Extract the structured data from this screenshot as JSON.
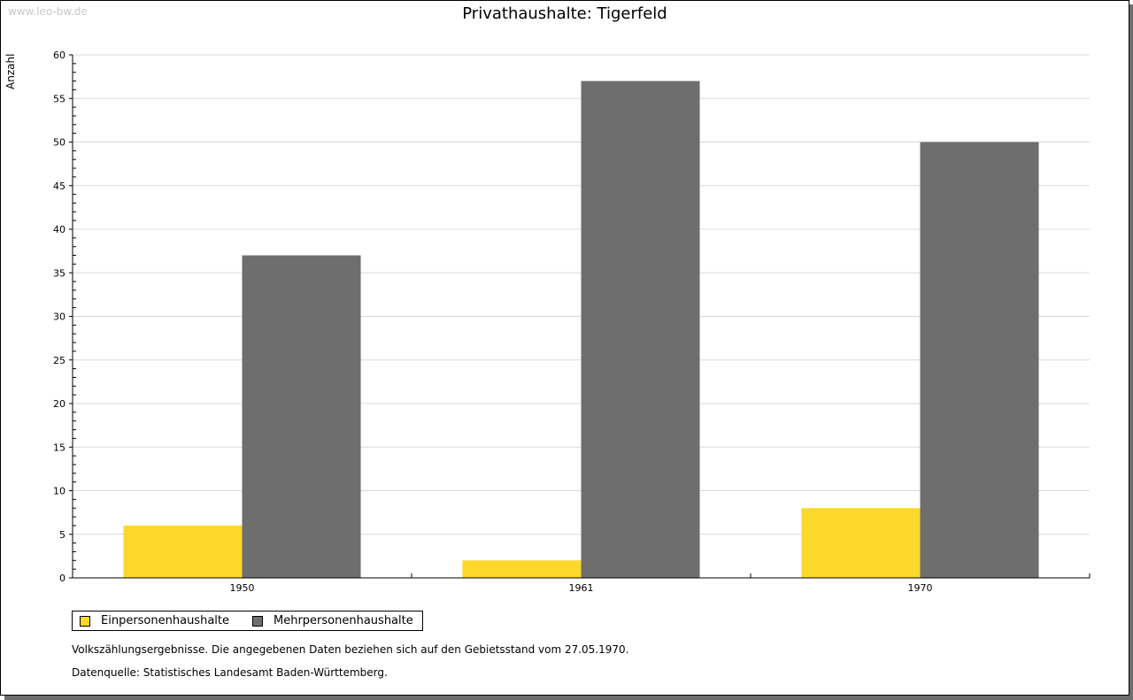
{
  "watermark": "www.leo-bw.de",
  "chart_data": {
    "type": "bar",
    "title": "Privathaushalte: Tigerfeld",
    "xlabel": "",
    "ylabel": "Anzahl",
    "ylim": [
      0,
      60
    ],
    "yticks": [
      0,
      5,
      10,
      15,
      20,
      25,
      30,
      35,
      40,
      45,
      50,
      55,
      60
    ],
    "grid": true,
    "categories": [
      "1950",
      "1961",
      "1970"
    ],
    "series": [
      {
        "name": "Einpersonenhaushalte",
        "color": "#fcd72c",
        "values": [
          6,
          2,
          8
        ]
      },
      {
        "name": "Mehrpersonenhaushalte",
        "color": "#6e6e6e",
        "values": [
          37,
          57,
          50
        ]
      }
    ],
    "legend_placement": "bottom-left"
  },
  "notes": [
    "Volkszählungsergebnisse. Die angegebenen Daten beziehen sich auf den Gebietsstand vom 27.05.1970.",
    "Datenquelle: Statistisches Landesamt Baden-Württemberg."
  ]
}
